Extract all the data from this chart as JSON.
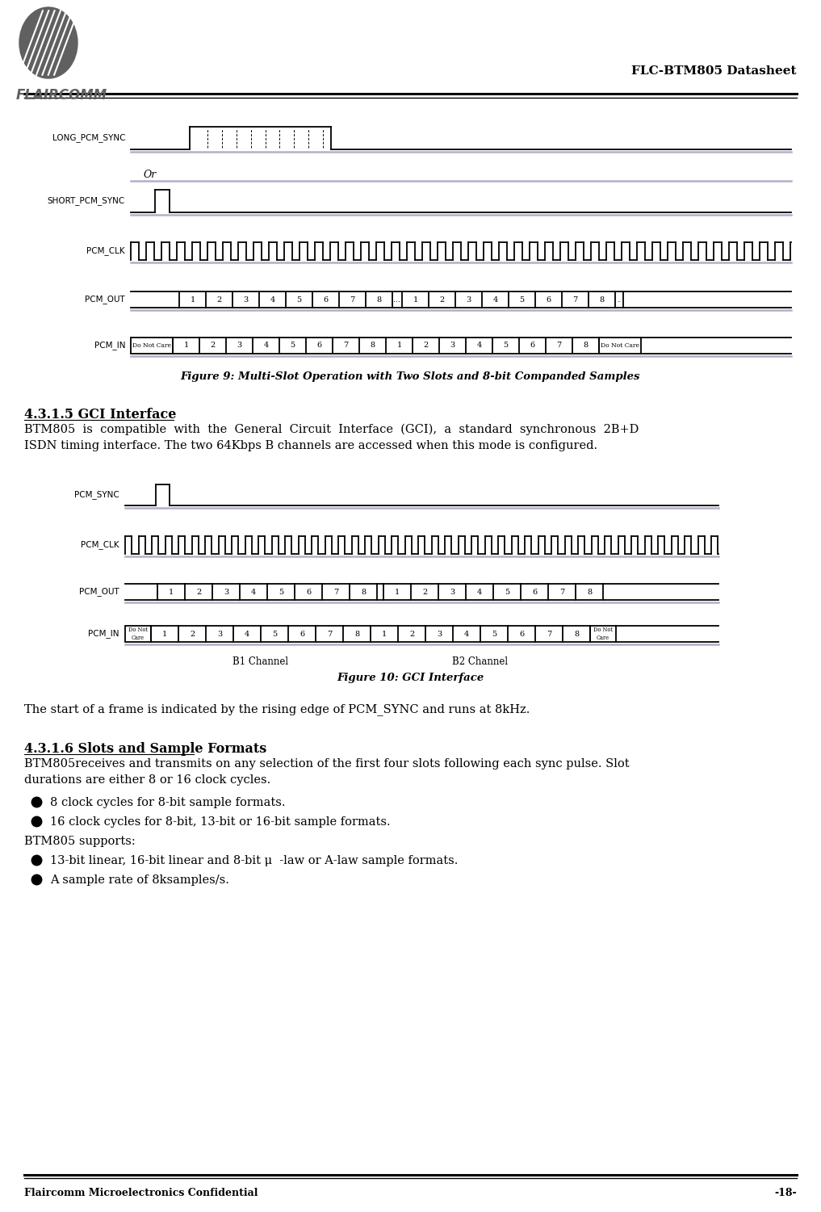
{
  "title_right": "FLC-BTM805 Datasheet",
  "company": "FLAIRCOMM",
  "footer_left": "Flaircomm Microelectronics Confidential",
  "footer_right": "-18-",
  "fig9_caption": "Figure 9: Multi-Slot Operation with Two Slots and 8-bit Companded Samples",
  "fig10_caption": "Figure 10: GCI Interface",
  "section_431_5_title": "4.3.1.5 GCI Interface",
  "section_431_5_line1": "BTM805  is  compatible  with  the  General  Circuit  Interface  (GCI),  a  standard  synchronous  2B+D",
  "section_431_5_line2": "ISDN timing interface. The two 64Kbps B channels are accessed when this mode is configured.",
  "section_431_6_title": "4.3.1.6 Slots and Sample Formats",
  "section_431_6_line1": "BTM805receives and transmits on any selection of the first four slots following each sync pulse. Slot",
  "section_431_6_line2": "durations are either 8 or 16 clock cycles.",
  "bullet1": "8 clock cycles for 8-bit sample formats.",
  "bullet2": "16 clock cycles for 8-bit, 13-bit or 16-bit sample formats.",
  "btm805_supports": "BTM805 supports:",
  "bullet3": "13-bit linear, 16-bit linear and 8-bit μ  -law or A-law sample formats.",
  "bullet4": "A sample rate of 8ksamples/s.",
  "sync_text": "The start of a frame is indicated by the rising edge of PCM_SYNC and runs at 8kHz.",
  "bg_color": "#ffffff"
}
